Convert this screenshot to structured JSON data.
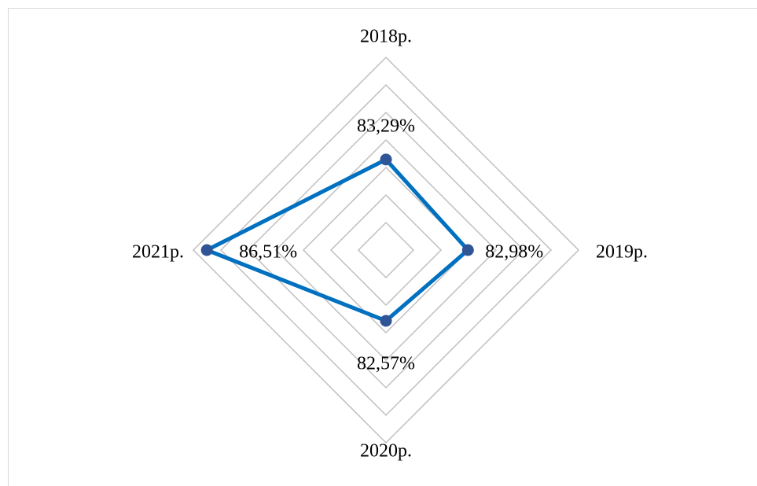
{
  "chart_data": {
    "type": "radar",
    "categories": [
      "2018р.",
      "2019р.",
      "2020р.",
      "2021р."
    ],
    "values": [
      83.29,
      82.98,
      82.57,
      86.51
    ],
    "value_labels": [
      "83,29%",
      "82,98%",
      "82,57%",
      "86,51%"
    ],
    "color": "#0070c0",
    "marker_color": "#2f5597",
    "rlim": [
      80,
      87
    ],
    "rticks": [
      81,
      82,
      83,
      84,
      85,
      86,
      87
    ],
    "grid": true
  }
}
